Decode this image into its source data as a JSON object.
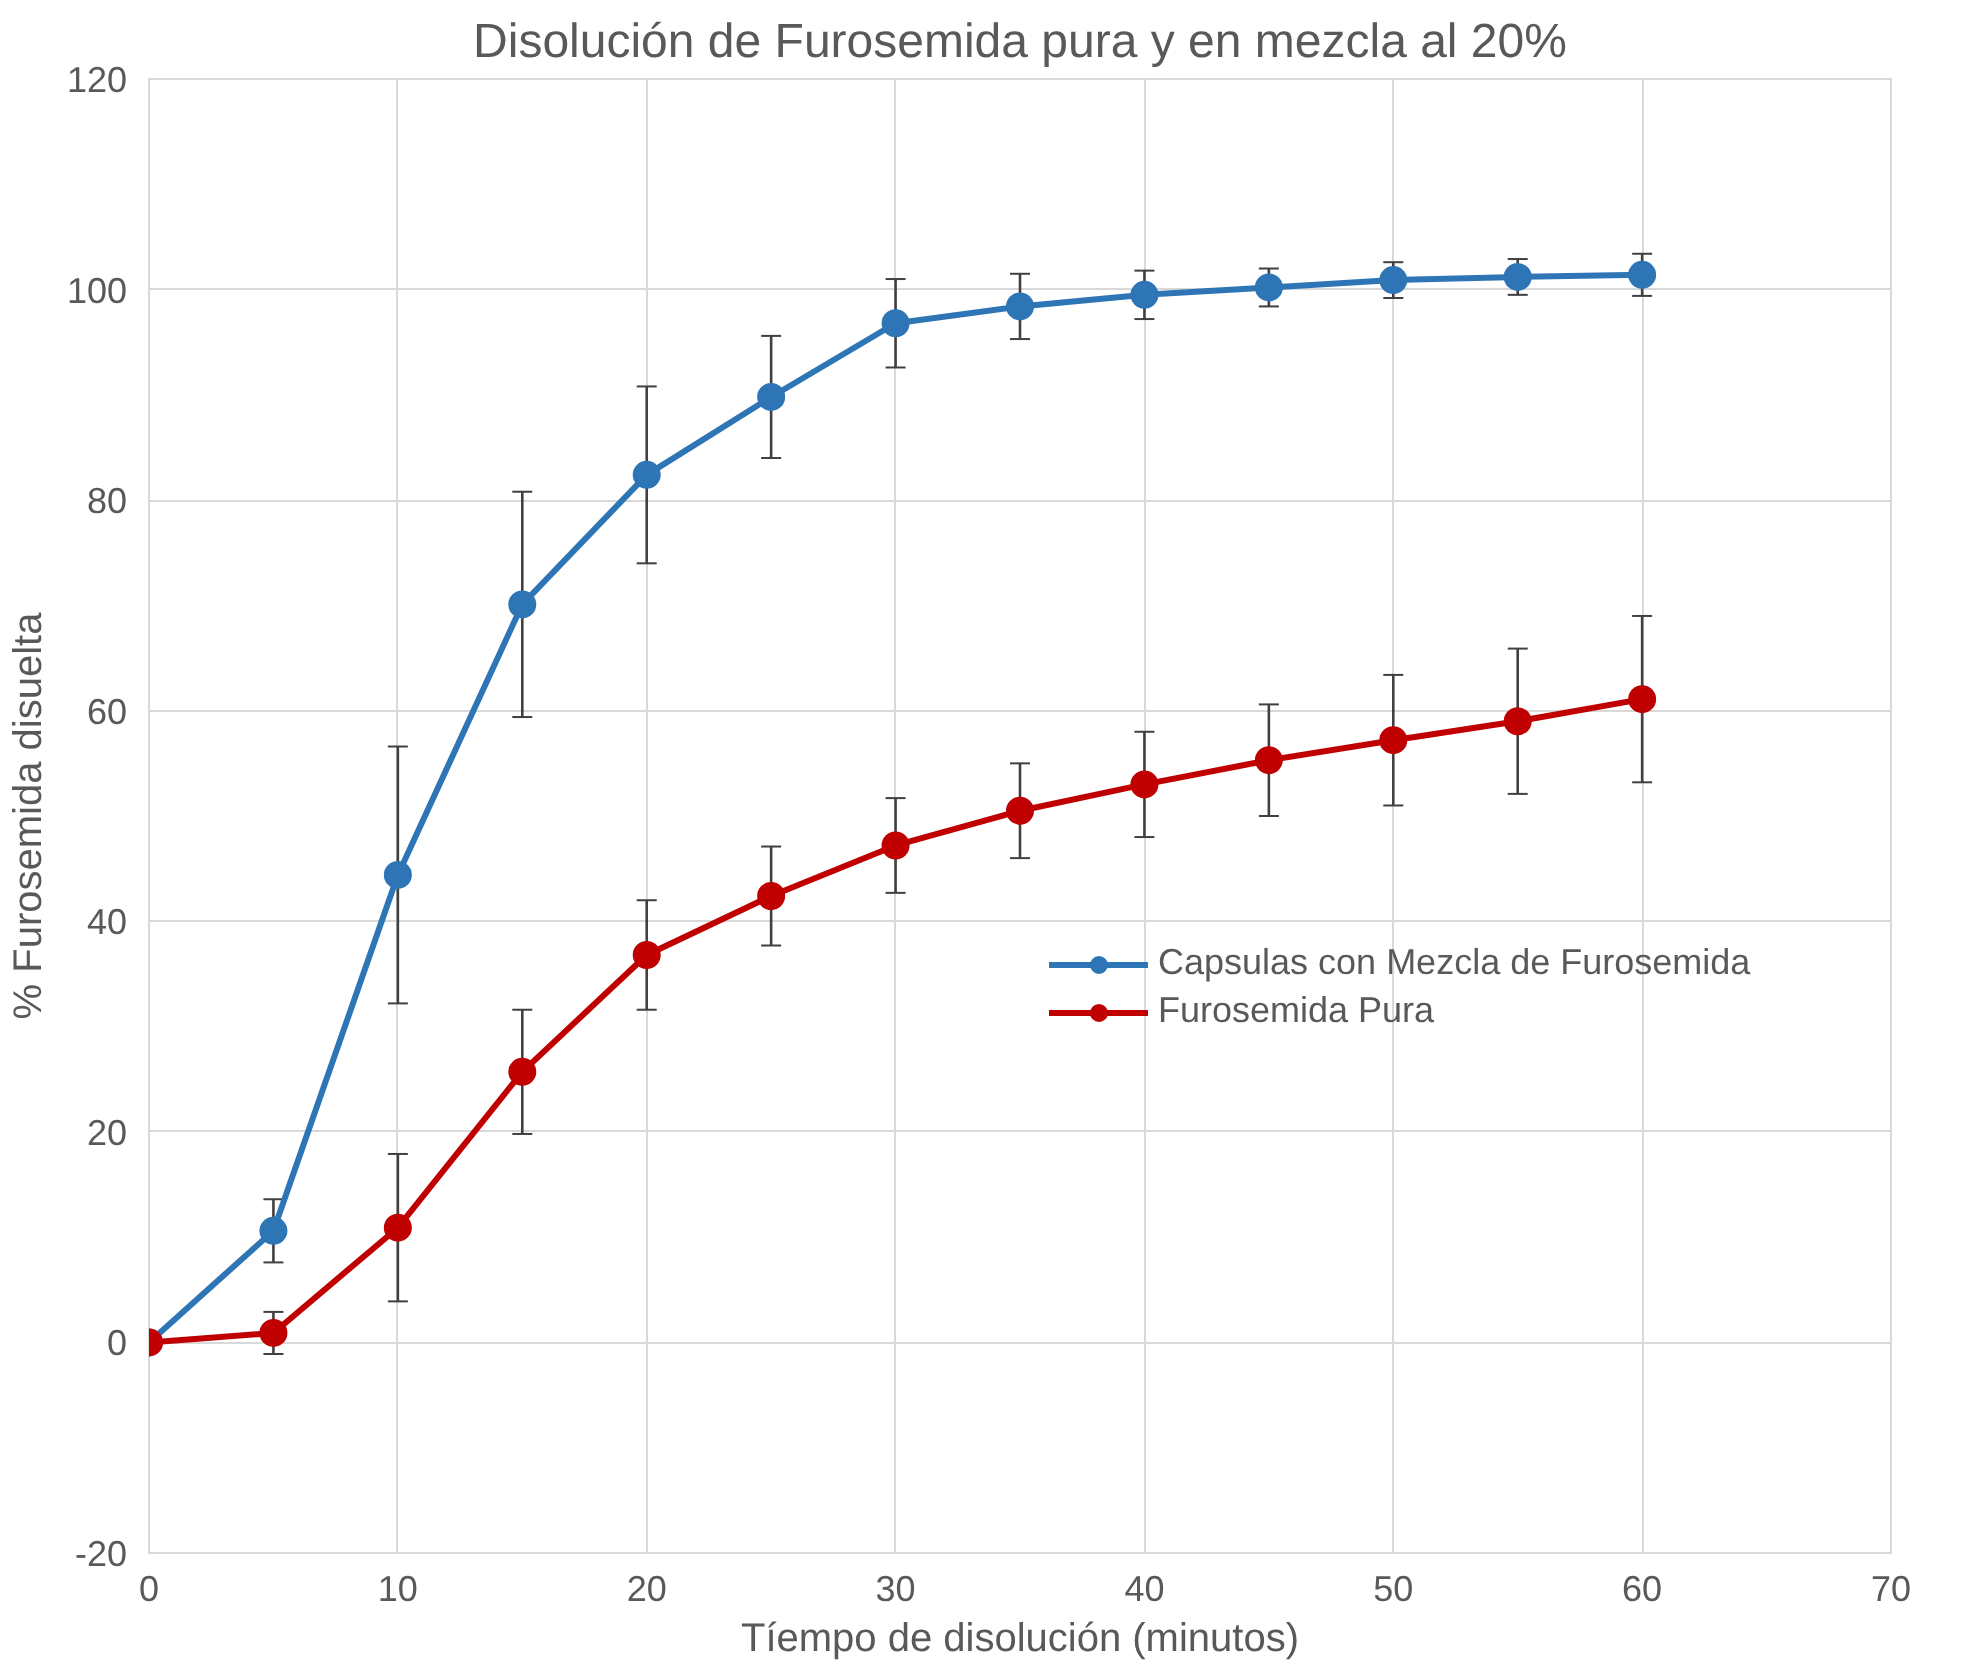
{
  "chart_data": {
    "type": "line",
    "title": "Disolución de Furosemida pura y en mezcla al 20%",
    "xlabel": "Tíempo de disolución (minutos)",
    "ylabel": "% Furosemida disuelta",
    "x": [
      0,
      5,
      10,
      15,
      20,
      25,
      30,
      35,
      40,
      45,
      50,
      55,
      60
    ],
    "series": [
      {
        "name": "Capsulas con Mezcla de Furosemida",
        "color": "#2e75b6",
        "values": [
          0,
          10.6,
          44.4,
          70.1,
          82.4,
          89.8,
          96.8,
          98.4,
          99.5,
          100.2,
          100.9,
          101.2,
          101.4
        ],
        "errors": [
          null,
          3,
          12.2,
          10.7,
          8.4,
          5.8,
          4.2,
          3.1,
          2.3,
          1.8,
          1.7,
          1.7,
          2
        ]
      },
      {
        "name": "Furosemida Pura",
        "color": "#c00000",
        "values": [
          0,
          0.9,
          10.9,
          25.7,
          36.8,
          42.4,
          47.2,
          50.5,
          53,
          55.3,
          57.2,
          59,
          61.1
        ],
        "errors": [
          null,
          2,
          7,
          5.9,
          5.2,
          4.7,
          4.5,
          4.5,
          5,
          5.3,
          6.2,
          6.9,
          7.9
        ]
      }
    ],
    "xlim": [
      0,
      70
    ],
    "ylim": [
      -20,
      120
    ],
    "xticks": [
      0,
      10,
      20,
      30,
      40,
      50,
      60,
      70
    ],
    "yticks": [
      -20,
      0,
      20,
      40,
      60,
      80,
      100,
      120
    ],
    "grid": true,
    "legend": "right",
    "marker": "circle",
    "line_style": "solid"
  }
}
